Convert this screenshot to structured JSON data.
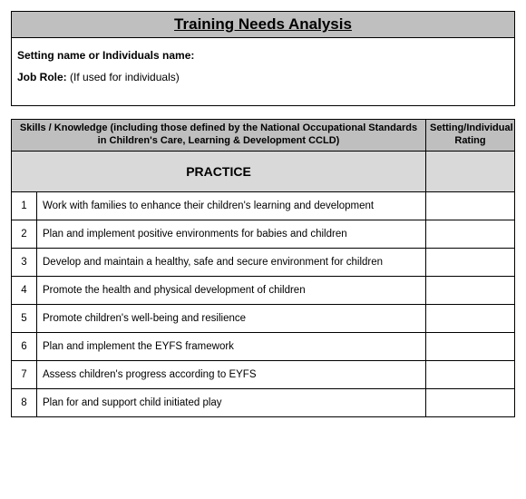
{
  "header": {
    "title": "Training Needs Analysis",
    "fields": [
      {
        "label": "Setting name or Individuals name:",
        "hint": ""
      },
      {
        "label": "Job Role:",
        "hint": "  (If used for individuals)"
      }
    ]
  },
  "table": {
    "columns": {
      "skills_header": "Skills / Knowledge (including those defined by the National Occupational Standards in Children's Care, Learning & Development CCLD)",
      "rating_header": "Setting/Individual Rating"
    },
    "section_title": "PRACTICE",
    "rows": [
      {
        "num": "1",
        "text": "Work with families to enhance their children's learning and development"
      },
      {
        "num": "2",
        "text": "Plan and implement positive environments for babies and children"
      },
      {
        "num": "3",
        "text": "Develop and maintain a healthy, safe and secure environment for children"
      },
      {
        "num": "4",
        "text": "Promote the health and physical development of children"
      },
      {
        "num": "5",
        "text": "Promote children's well-being and resilience"
      },
      {
        "num": "6",
        "text": "Plan and implement the EYFS  framework"
      },
      {
        "num": "7",
        "text": "Assess children's progress according to EYFS"
      },
      {
        "num": "8",
        "text": "Plan for and support child initiated play"
      }
    ]
  },
  "colors": {
    "header_bg": "#bfbfbf",
    "section_bg": "#d9d9d9",
    "border": "#000000",
    "page_bg": "#ffffff"
  }
}
